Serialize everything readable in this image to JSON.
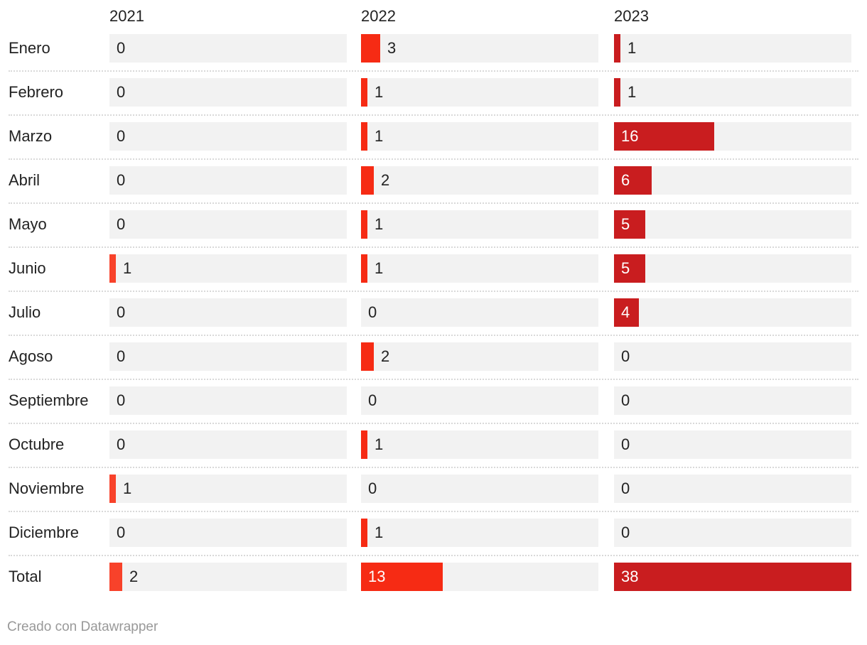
{
  "chart_data": {
    "type": "table",
    "columns": [
      "2021",
      "2022",
      "2023"
    ],
    "rows": [
      {
        "label": "Enero",
        "values": [
          0,
          3,
          1
        ]
      },
      {
        "label": "Febrero",
        "values": [
          0,
          1,
          1
        ]
      },
      {
        "label": "Marzo",
        "values": [
          0,
          1,
          16
        ]
      },
      {
        "label": "Abril",
        "values": [
          0,
          2,
          6
        ]
      },
      {
        "label": "Mayo",
        "values": [
          0,
          1,
          5
        ]
      },
      {
        "label": "Junio",
        "values": [
          1,
          1,
          5
        ]
      },
      {
        "label": "Julio",
        "values": [
          0,
          0,
          4
        ]
      },
      {
        "label": "Agoso",
        "values": [
          0,
          2,
          0
        ]
      },
      {
        "label": "Septiembre",
        "values": [
          0,
          0,
          0
        ]
      },
      {
        "label": "Octubre",
        "values": [
          0,
          1,
          0
        ]
      },
      {
        "label": "Noviembre",
        "values": [
          1,
          0,
          0
        ]
      },
      {
        "label": "Diciembre",
        "values": [
          0,
          1,
          0
        ]
      },
      {
        "label": "Total",
        "values": [
          2,
          13,
          38
        ]
      }
    ],
    "column_colors": [
      "#f8422a",
      "#f62b14",
      "#c91d1f"
    ],
    "track_color": "#f2f2f2",
    "max_value": 38
  },
  "footer": "Creado con Datawrapper"
}
